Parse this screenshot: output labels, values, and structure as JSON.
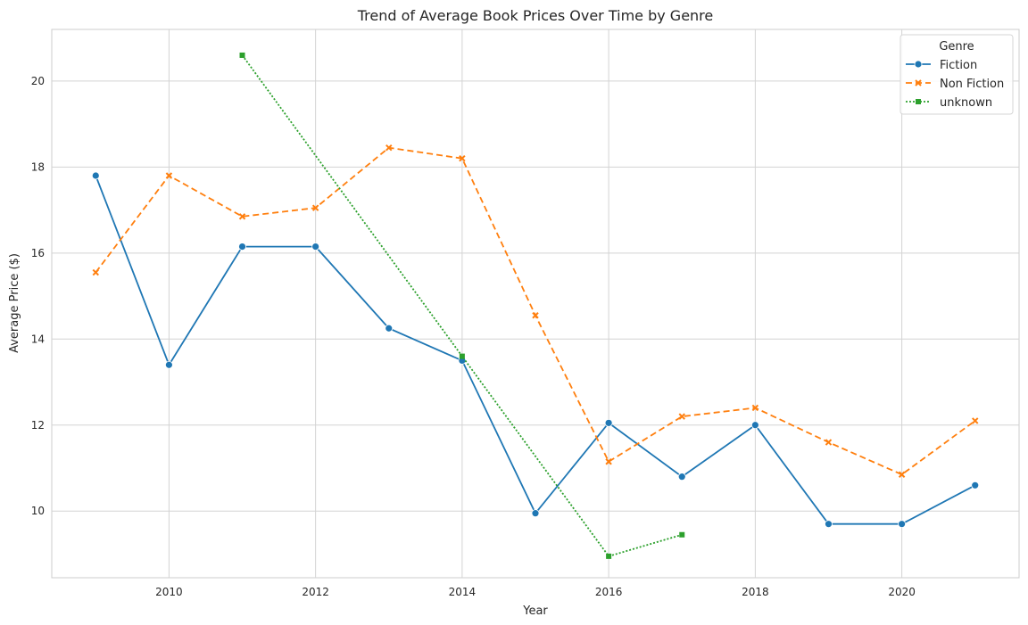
{
  "chart_data": {
    "type": "line",
    "title": "Trend of Average Book Prices Over Time by Genre",
    "xlabel": "Year",
    "ylabel": "Average Price ($)",
    "xlim": [
      2008.4,
      2021.6
    ],
    "ylim": [
      8.45,
      21.2
    ],
    "xticks": [
      2010,
      2012,
      2014,
      2016,
      2018,
      2020
    ],
    "yticks": [
      10,
      12,
      14,
      16,
      18,
      20
    ],
    "grid": true,
    "legend": {
      "title": "Genre",
      "position": "top-right"
    },
    "series": [
      {
        "name": "Fiction",
        "color": "#1f77b4",
        "marker": "circle",
        "dash": "solid",
        "x": [
          2009,
          2010,
          2011,
          2012,
          2013,
          2014,
          2015,
          2016,
          2017,
          2018,
          2019,
          2020,
          2021
        ],
        "y": [
          17.8,
          13.4,
          16.15,
          16.15,
          14.25,
          13.5,
          9.95,
          12.05,
          10.8,
          12.0,
          9.7,
          9.7,
          10.6
        ]
      },
      {
        "name": "Non Fiction",
        "color": "#ff7f0e",
        "marker": "x",
        "dash": "dashed",
        "x": [
          2009,
          2010,
          2011,
          2012,
          2013,
          2014,
          2015,
          2016,
          2017,
          2018,
          2019,
          2020,
          2021
        ],
        "y": [
          15.55,
          17.8,
          16.85,
          17.05,
          18.45,
          18.2,
          14.55,
          11.15,
          12.2,
          12.4,
          11.6,
          10.85,
          12.1
        ]
      },
      {
        "name": "unknown",
        "color": "#2ca02c",
        "marker": "square",
        "dash": "dotted",
        "x": [
          2011,
          2014,
          2016,
          2017
        ],
        "y": [
          20.6,
          13.6,
          8.95,
          9.45
        ]
      }
    ]
  }
}
